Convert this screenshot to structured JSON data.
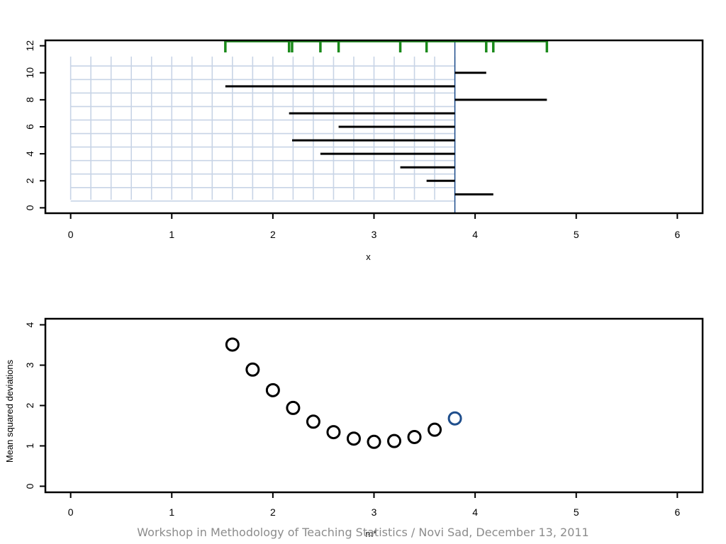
{
  "footer_text": "Workshop in Methodology of Teaching Statistics / Novi Sad, December 13, 2011",
  "colors": {
    "data": "#000000",
    "rug": "#1a8a1a",
    "current": "#1f4e8c",
    "grid": "#c8d4e6"
  },
  "chart_data": [
    {
      "type": "scatter",
      "xlabel": "x",
      "ylabel": "",
      "xlim": [
        -0.25,
        6.25
      ],
      "ylim": [
        -0.4,
        12.4
      ],
      "x_ticks": [
        0,
        1,
        2,
        3,
        4,
        5,
        6
      ],
      "y_ticks": [
        0,
        2,
        4,
        6,
        8,
        10,
        12
      ],
      "current_mu": 3.8,
      "observations": [
        {
          "index": 1,
          "x": 4.18
        },
        {
          "index": 2,
          "x": 3.52
        },
        {
          "index": 3,
          "x": 3.26
        },
        {
          "index": 4,
          "x": 2.47
        },
        {
          "index": 5,
          "x": 2.19
        },
        {
          "index": 6,
          "x": 2.65
        },
        {
          "index": 7,
          "x": 2.16
        },
        {
          "index": 8,
          "x": 4.71
        },
        {
          "index": 9,
          "x": 1.53
        },
        {
          "index": 10,
          "x": 4.11
        }
      ],
      "grid_mu": [
        0,
        0.2,
        0.4,
        0.6,
        0.8,
        1.0,
        1.2,
        1.4,
        1.6,
        1.8,
        2.0,
        2.2,
        2.4,
        2.6,
        2.8,
        3.0,
        3.2,
        3.4,
        3.6,
        3.8
      ],
      "grid_rows": [
        1,
        2,
        3,
        4,
        5,
        6,
        7,
        8,
        9,
        10
      ]
    },
    {
      "type": "scatter",
      "xlabel": "m*",
      "ylabel": "Mean squared deviations",
      "xlim": [
        -0.25,
        6.25
      ],
      "ylim": [
        -0.15,
        4.15
      ],
      "x_ticks": [
        0,
        1,
        2,
        3,
        4,
        5,
        6
      ],
      "y_ticks": [
        0,
        1,
        2,
        3,
        4
      ],
      "points": [
        {
          "x": 1.6,
          "y": 3.51
        },
        {
          "x": 1.8,
          "y": 2.89
        },
        {
          "x": 2.0,
          "y": 2.38
        },
        {
          "x": 2.2,
          "y": 1.94
        },
        {
          "x": 2.4,
          "y": 1.6
        },
        {
          "x": 2.6,
          "y": 1.34
        },
        {
          "x": 2.8,
          "y": 1.18
        },
        {
          "x": 3.0,
          "y": 1.1
        },
        {
          "x": 3.2,
          "y": 1.12
        },
        {
          "x": 3.4,
          "y": 1.22
        },
        {
          "x": 3.6,
          "y": 1.4
        }
      ],
      "highlight_point": {
        "x": 3.8,
        "y": 1.68
      }
    }
  ]
}
